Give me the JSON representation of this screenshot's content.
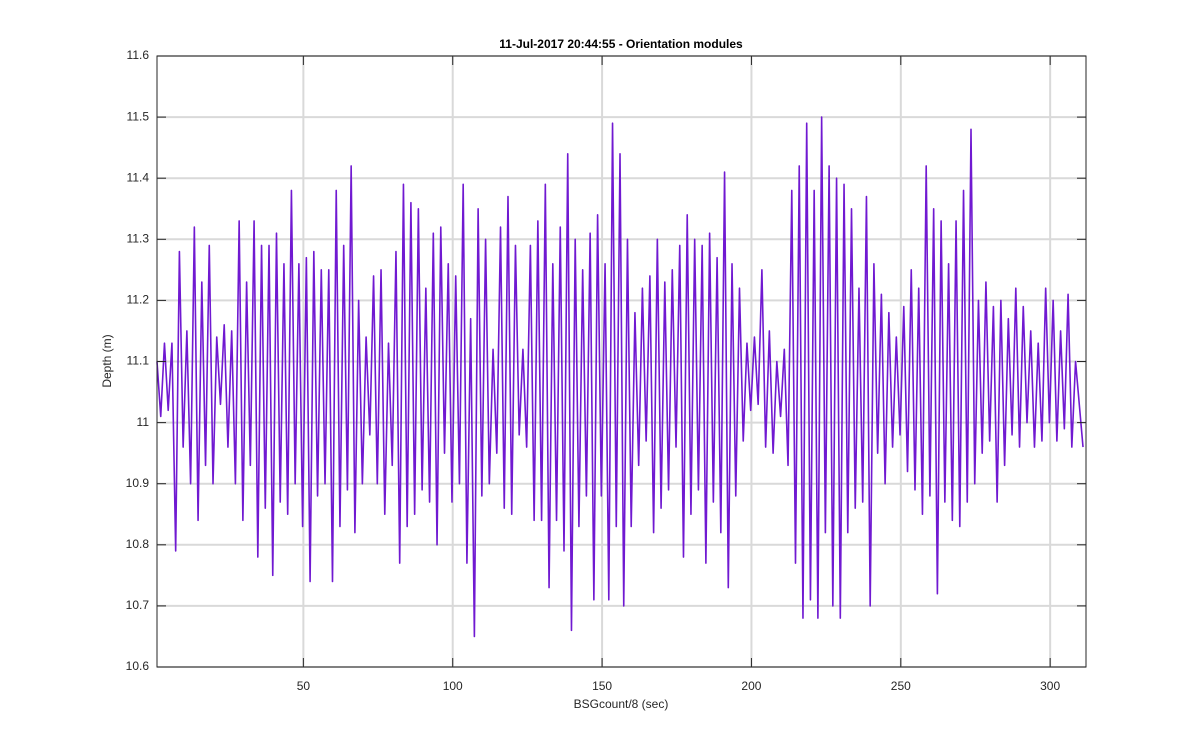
{
  "chart_data": {
    "type": "line",
    "title": "11-Jul-2017 20:44:55 - Orientation modules",
    "x_label": "BSGcount/8 (sec)",
    "y_label": "Depth (m)",
    "xlim": [
      1,
      312
    ],
    "ylim": [
      10.6,
      11.6
    ],
    "xticks": [
      50,
      100,
      150,
      200,
      250,
      300
    ],
    "yticks": [
      10.6,
      10.7,
      10.8,
      10.9,
      11,
      11.1,
      11.2,
      11.3,
      11.4,
      11.5,
      11.6
    ],
    "grid": true,
    "x": [
      1,
      2.25,
      3.5,
      4.75,
      6,
      7.25,
      8.5,
      9.75,
      11,
      12.25,
      13.5,
      14.75,
      16,
      17.25,
      18.5,
      19.75,
      21,
      22.25,
      23.5,
      24.75,
      26,
      27.25,
      28.5,
      29.75,
      31,
      32.25,
      33.5,
      34.75,
      36,
      37.25,
      38.5,
      39.75,
      41,
      42.25,
      43.5,
      44.75,
      46,
      47.25,
      48.5,
      49.75,
      51,
      52.25,
      53.5,
      54.75,
      56,
      57.25,
      58.5,
      59.75,
      61,
      62.25,
      63.5,
      64.75,
      66,
      67.25,
      68.5,
      69.75,
      71,
      72.25,
      73.5,
      74.75,
      76,
      77.25,
      78.5,
      79.75,
      81,
      82.25,
      83.5,
      84.75,
      86,
      87.25,
      88.5,
      89.75,
      91,
      92.25,
      93.5,
      94.75,
      96,
      97.25,
      98.5,
      99.75,
      101,
      102.25,
      103.5,
      104.75,
      106,
      107.25,
      108.5,
      109.75,
      111,
      112.25,
      113.5,
      114.75,
      116,
      117.25,
      118.5,
      119.75,
      121,
      122.25,
      123.5,
      124.75,
      126,
      127.25,
      128.5,
      129.75,
      131,
      132.25,
      133.5,
      134.75,
      136,
      137.25,
      138.5,
      139.75,
      141,
      142.25,
      143.5,
      144.75,
      146,
      147.25,
      148.5,
      149.75,
      151,
      152.25,
      153.5,
      154.75,
      156,
      157.25,
      158.5,
      159.75,
      161,
      162.25,
      163.5,
      164.75,
      166,
      167.25,
      168.5,
      169.75,
      171,
      172.25,
      173.5,
      174.75,
      176,
      177.25,
      178.5,
      179.75,
      181,
      182.25,
      183.5,
      184.75,
      186,
      187.25,
      188.5,
      189.75,
      191,
      192.25,
      193.5,
      194.75,
      196,
      197.25,
      198.5,
      199.75,
      201,
      202.25,
      203.5,
      204.75,
      206,
      207.25,
      208.5,
      209.75,
      211,
      212.25,
      213.5,
      214.75,
      216,
      217.25,
      218.5,
      219.75,
      221,
      222.25,
      223.5,
      224.75,
      226,
      227.25,
      228.5,
      229.75,
      231,
      232.25,
      233.5,
      234.75,
      236,
      237.25,
      238.5,
      239.75,
      241,
      242.25,
      243.5,
      244.75,
      246,
      247.25,
      248.5,
      249.75,
      251,
      252.25,
      253.5,
      254.75,
      256,
      257.25,
      258.5,
      259.75,
      261,
      262.25,
      263.5,
      264.75,
      266,
      267.25,
      268.5,
      269.75,
      271,
      272.25,
      273.5,
      274.75,
      276,
      277.25,
      278.5,
      279.75,
      281,
      282.25,
      283.5,
      284.75,
      286,
      287.25,
      288.5,
      289.75,
      291,
      292.25,
      293.5,
      294.75,
      296,
      297.25,
      298.5,
      299.75,
      301,
      302.25,
      303.5,
      304.75,
      306,
      307.25,
      308.5,
      309.75,
      311
    ],
    "series": [
      {
        "color": "#7019d1",
        "values": [
          11.1,
          11.01,
          11.13,
          11.02,
          11.13,
          10.79,
          11.28,
          10.96,
          11.15,
          10.9,
          11.32,
          10.84,
          11.23,
          10.93,
          11.29,
          10.9,
          11.14,
          11.03,
          11.16,
          10.96,
          11.15,
          10.9,
          11.33,
          10.84,
          11.23,
          10.93,
          11.33,
          10.78,
          11.29,
          10.86,
          11.29,
          10.75,
          11.31,
          10.87,
          11.26,
          10.85,
          11.38,
          10.9,
          11.26,
          10.83,
          11.27,
          10.74,
          11.28,
          10.88,
          11.25,
          10.9,
          11.25,
          10.74,
          11.38,
          10.83,
          11.29,
          10.89,
          11.42,
          10.82,
          11.2,
          10.9,
          11.14,
          10.98,
          11.24,
          10.9,
          11.25,
          10.85,
          11.13,
          10.93,
          11.28,
          10.77,
          11.39,
          10.83,
          11.36,
          10.85,
          11.35,
          10.89,
          11.22,
          10.87,
          11.31,
          10.8,
          11.32,
          10.95,
          11.26,
          10.87,
          11.24,
          10.9,
          11.39,
          10.77,
          11.17,
          10.65,
          11.35,
          10.88,
          11.3,
          10.9,
          11.12,
          10.95,
          11.32,
          10.86,
          11.37,
          10.85,
          11.29,
          10.98,
          11.12,
          10.96,
          11.29,
          10.84,
          11.33,
          10.84,
          11.39,
          10.73,
          11.26,
          10.84,
          11.32,
          10.79,
          11.44,
          10.66,
          11.3,
          10.83,
          11.25,
          10.88,
          11.31,
          10.71,
          11.34,
          10.88,
          11.26,
          10.71,
          11.49,
          10.83,
          11.44,
          10.7,
          11.3,
          10.83,
          11.18,
          10.93,
          11.22,
          10.97,
          11.24,
          10.82,
          11.3,
          10.86,
          11.23,
          10.89,
          11.25,
          10.96,
          11.29,
          10.78,
          11.34,
          10.85,
          11.3,
          10.89,
          11.29,
          10.77,
          11.31,
          10.87,
          11.27,
          10.82,
          11.41,
          10.73,
          11.26,
          10.88,
          11.22,
          10.97,
          11.13,
          11.02,
          11.14,
          11.03,
          11.25,
          10.96,
          11.15,
          10.95,
          11.1,
          11.01,
          11.12,
          10.93,
          11.38,
          10.77,
          11.42,
          10.68,
          11.49,
          10.71,
          11.38,
          10.68,
          11.5,
          10.82,
          11.42,
          10.7,
          11.4,
          10.68,
          11.39,
          10.82,
          11.35,
          10.86,
          11.22,
          10.87,
          11.37,
          10.7,
          11.26,
          10.95,
          11.21,
          10.9,
          11.18,
          10.96,
          11.14,
          10.98,
          11.19,
          10.92,
          11.25,
          10.89,
          11.22,
          10.85,
          11.42,
          10.88,
          11.35,
          10.72,
          11.33,
          10.87,
          11.26,
          10.84,
          11.33,
          10.83,
          11.38,
          10.87,
          11.48,
          10.9,
          11.2,
          10.95,
          11.23,
          10.97,
          11.19,
          10.87,
          11.2,
          10.93,
          11.17,
          10.98,
          11.22,
          10.96,
          11.19,
          11.0,
          11.15,
          10.96,
          11.13,
          10.97,
          11.22,
          11.0,
          11.2,
          10.97,
          11.15,
          10.99,
          11.21,
          10.96,
          11.1,
          11.03,
          10.96
        ]
      }
    ]
  }
}
